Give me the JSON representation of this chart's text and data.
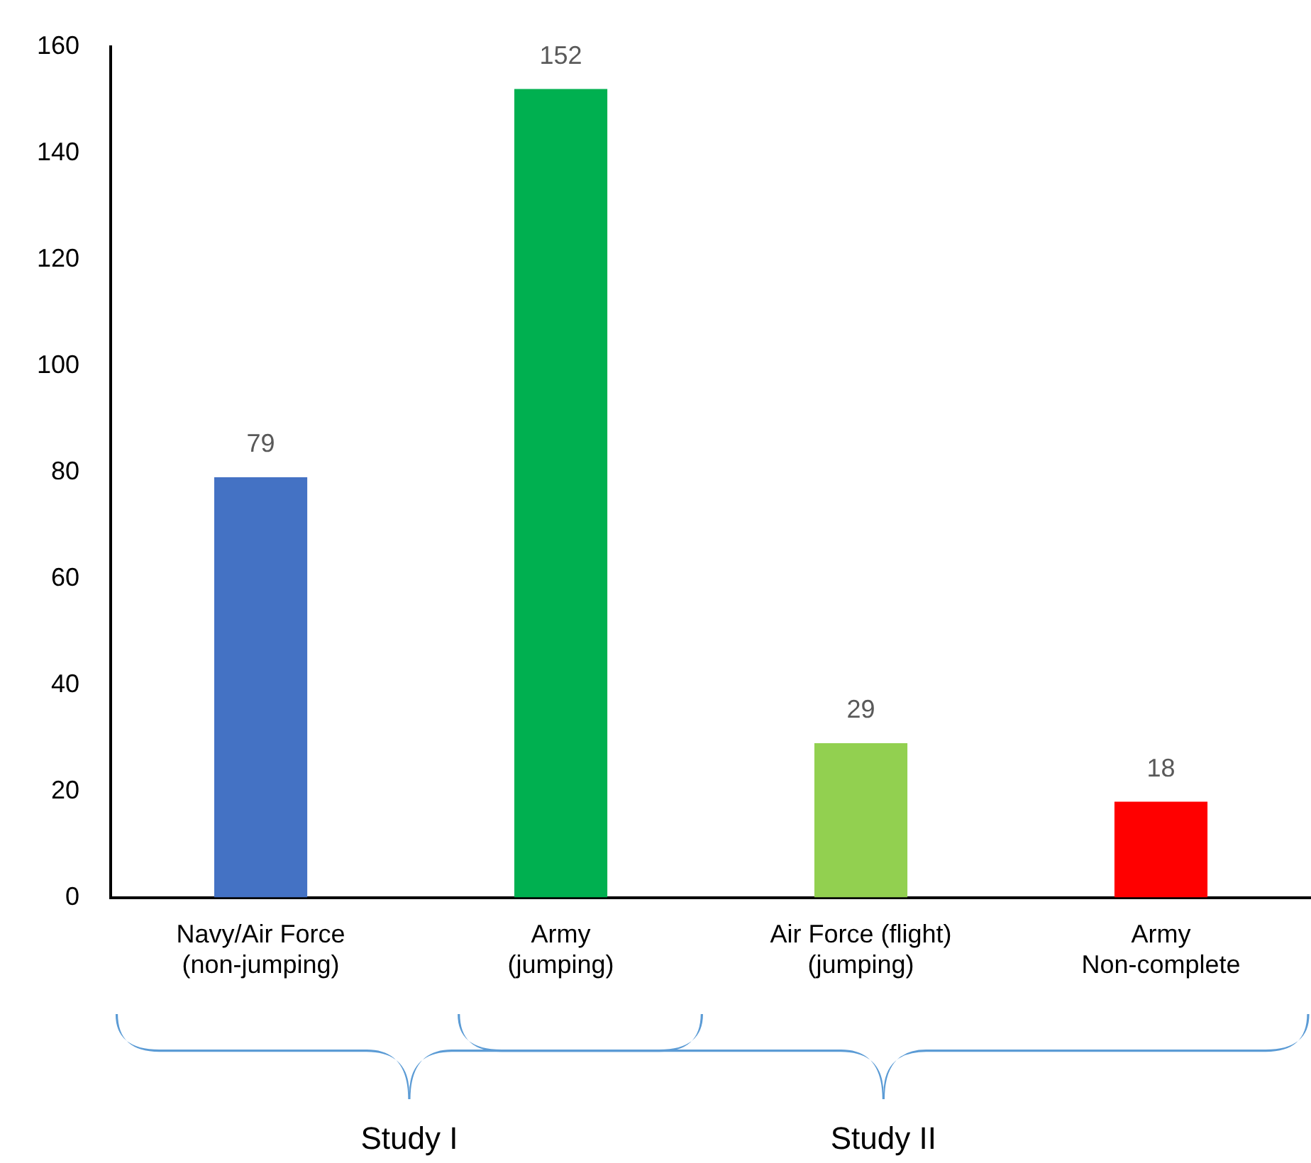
{
  "chart_data": {
    "type": "bar",
    "categories": [
      "Navy/Air Force\n(non-jumping)",
      "Army\n(jumping)",
      "Air Force (flight)\n(jumping)",
      "Army\nNon-complete"
    ],
    "values": [
      79,
      152,
      29,
      18
    ],
    "colors": [
      "#4472c4",
      "#00b050",
      "#92d050",
      "#ff0000"
    ],
    "ylim": [
      0,
      160
    ],
    "yticks": [
      0,
      20,
      40,
      60,
      80,
      100,
      120,
      140,
      160
    ],
    "grid": false,
    "legend": false,
    "data_labels": true,
    "annotations": [
      "Study I",
      "Study II"
    ]
  }
}
